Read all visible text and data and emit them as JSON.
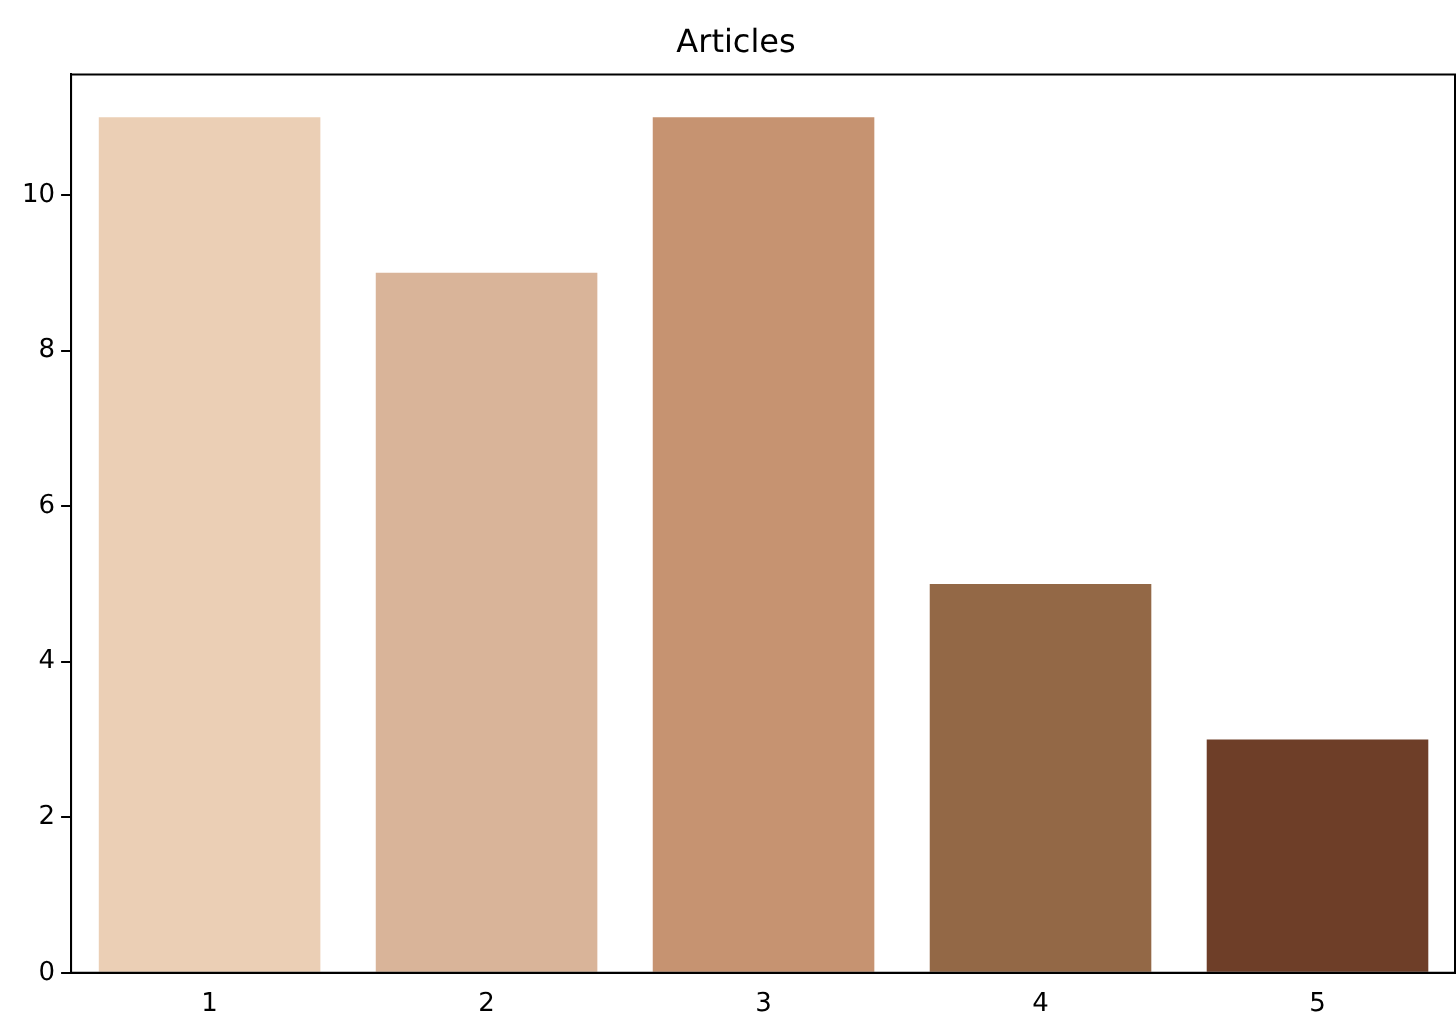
{
  "chart_data": {
    "type": "bar",
    "title": "Articles",
    "categories": [
      "1",
      "2",
      "3",
      "4",
      "5"
    ],
    "values": [
      11,
      9,
      11,
      5,
      3
    ],
    "colors": [
      "#ebcfb5",
      "#d9b499",
      "#c69371",
      "#936846",
      "#6e3e28"
    ],
    "ylim": [
      0,
      11.55
    ],
    "yticks": [
      0,
      2,
      4,
      6,
      8,
      10
    ],
    "grid": false,
    "legend": false
  }
}
